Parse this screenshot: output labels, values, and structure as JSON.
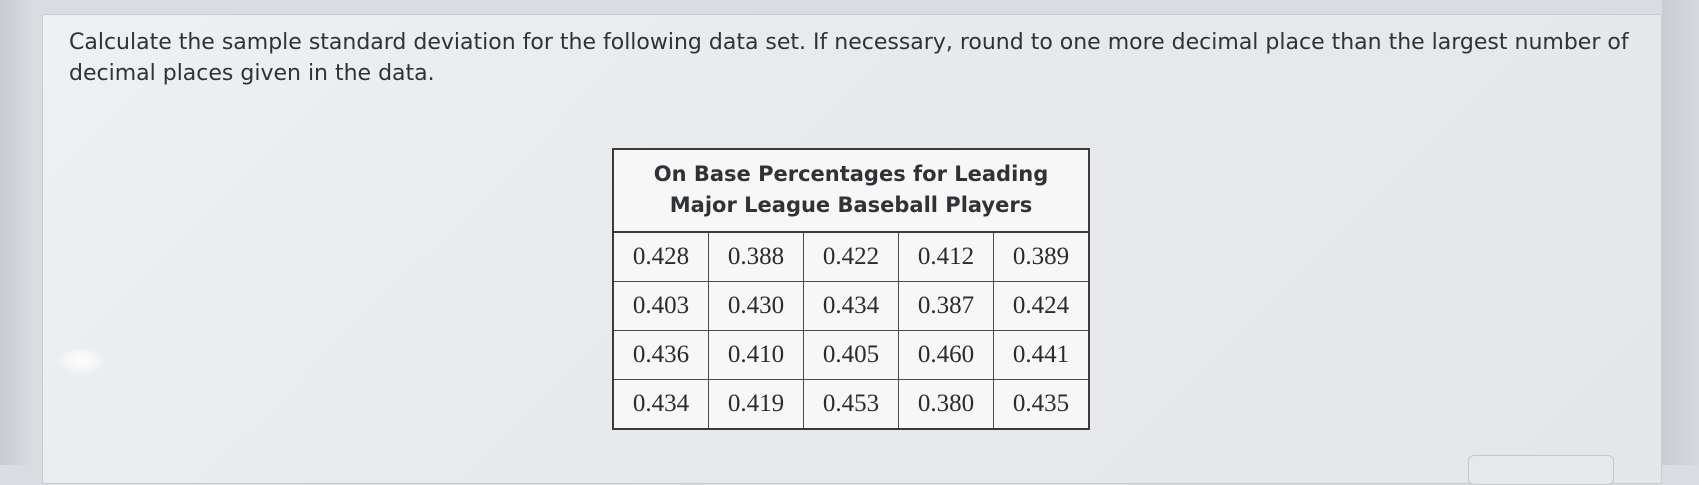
{
  "question": {
    "text": "Calculate the sample standard deviation for the following data set. If necessary, round to one more decimal place than the largest number of decimal places given in the data."
  },
  "table": {
    "title": "On Base Percentages for Leading Major League Baseball Players",
    "rows": [
      [
        "0.428",
        "0.388",
        "0.422",
        "0.412",
        "0.389"
      ],
      [
        "0.403",
        "0.430",
        "0.434",
        "0.387",
        "0.424"
      ],
      [
        "0.436",
        "0.410",
        "0.405",
        "0.460",
        "0.441"
      ],
      [
        "0.434",
        "0.419",
        "0.453",
        "0.380",
        "0.435"
      ]
    ]
  }
}
